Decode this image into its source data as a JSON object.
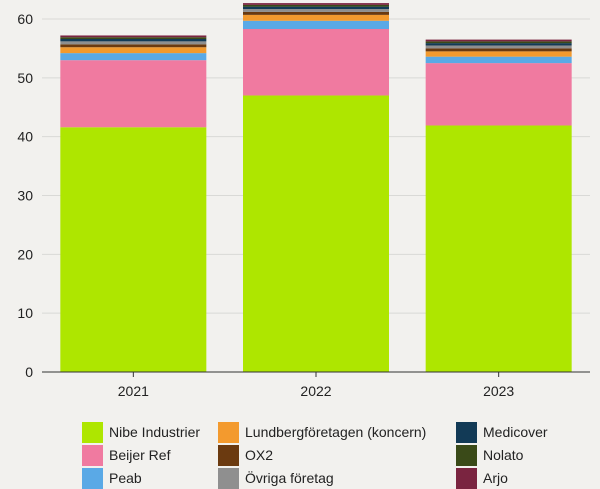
{
  "chart_data": {
    "type": "bar",
    "stacked": true,
    "categories": [
      "2021",
      "2022",
      "2023"
    ],
    "ylim": [
      0,
      60
    ],
    "yticks": [
      "0",
      "10",
      "20",
      "30",
      "40",
      "50",
      "60"
    ],
    "grid": true,
    "legend_position": "bottom",
    "series": [
      {
        "name": "Nibe Industrier",
        "color": "#aee600",
        "values": [
          41.6,
          47.0,
          41.9
        ]
      },
      {
        "name": "Beijer Ref",
        "color": "#f07aa0",
        "values": [
          11.4,
          11.3,
          10.6
        ]
      },
      {
        "name": "Peab",
        "color": "#5aa9e6",
        "values": [
          1.2,
          1.4,
          1.1
        ]
      },
      {
        "name": "Lundbergföretagen (koncern)",
        "color": "#f39a2e",
        "values": [
          1.0,
          1.0,
          0.9
        ]
      },
      {
        "name": "OX2",
        "color": "#6b3a10",
        "values": [
          0.5,
          0.5,
          0.5
        ]
      },
      {
        "name": "Övriga företag",
        "color": "#8f8f8f",
        "values": [
          0.5,
          0.5,
          0.5
        ]
      },
      {
        "name": "Medicover",
        "color": "#123a56",
        "values": [
          0.4,
          0.4,
          0.4
        ]
      },
      {
        "name": "Nolato",
        "color": "#3a4a18",
        "values": [
          0.3,
          0.3,
          0.3
        ]
      },
      {
        "name": "Arjo",
        "color": "#7a2440",
        "values": [
          0.3,
          0.3,
          0.3
        ]
      }
    ]
  }
}
